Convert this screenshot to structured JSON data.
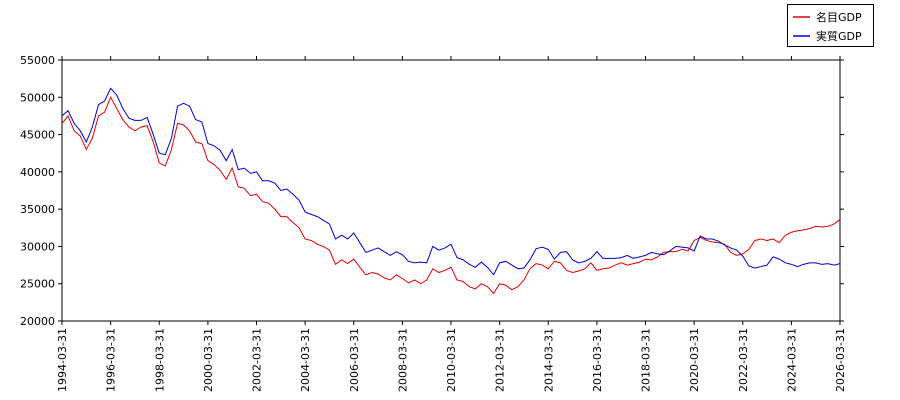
{
  "chart_data": {
    "type": "line",
    "x": [
      "1994-03-31",
      "1994-06-30",
      "1994-09-30",
      "1994-12-31",
      "1995-03-31",
      "1995-06-30",
      "1995-09-30",
      "1995-12-31",
      "1996-03-31",
      "1996-06-30",
      "1996-09-30",
      "1996-12-31",
      "1997-03-31",
      "1997-06-30",
      "1997-09-30",
      "1997-12-31",
      "1998-03-31",
      "1998-06-30",
      "1998-09-30",
      "1998-12-31",
      "1999-03-31",
      "1999-06-30",
      "1999-09-30",
      "1999-12-31",
      "2000-03-31",
      "2000-06-30",
      "2000-09-30",
      "2000-12-31",
      "2001-03-31",
      "2001-06-30",
      "2001-09-30",
      "2001-12-31",
      "2002-03-31",
      "2002-06-30",
      "2002-09-30",
      "2002-12-31",
      "2003-03-31",
      "2003-06-30",
      "2003-09-30",
      "2003-12-31",
      "2004-03-31",
      "2004-06-30",
      "2004-09-30",
      "2004-12-31",
      "2005-03-31",
      "2005-06-30",
      "2005-09-30",
      "2005-12-31",
      "2006-03-31",
      "2006-06-30",
      "2006-09-30",
      "2006-12-31",
      "2007-03-31",
      "2007-06-30",
      "2007-09-30",
      "2007-12-31",
      "2008-03-31",
      "2008-06-30",
      "2008-09-30",
      "2008-12-31",
      "2009-03-31",
      "2009-06-30",
      "2009-09-30",
      "2009-12-31",
      "2010-03-31",
      "2010-06-30",
      "2010-09-30",
      "2010-12-31",
      "2011-03-31",
      "2011-06-30",
      "2011-09-30",
      "2011-12-31",
      "2012-03-31",
      "2012-06-30",
      "2012-09-30",
      "2012-12-31",
      "2013-03-31",
      "2013-06-30",
      "2013-09-30",
      "2013-12-31",
      "2014-03-31",
      "2014-06-30",
      "2014-09-30",
      "2014-12-31",
      "2015-03-31",
      "2015-06-30",
      "2015-09-30",
      "2015-12-31",
      "2016-03-31",
      "2016-06-30",
      "2016-09-30",
      "2016-12-31",
      "2017-03-31",
      "2017-06-30",
      "2017-09-30",
      "2017-12-31",
      "2018-03-31",
      "2018-06-30",
      "2018-09-30",
      "2018-12-31",
      "2019-03-31",
      "2019-06-30",
      "2019-09-30",
      "2019-12-31",
      "2020-03-31",
      "2020-06-30",
      "2020-09-30",
      "2020-12-31",
      "2021-03-31",
      "2021-06-30",
      "2021-09-30",
      "2021-12-31",
      "2022-03-31",
      "2022-06-30",
      "2022-09-30",
      "2022-12-31",
      "2023-03-31",
      "2023-06-30",
      "2023-09-30",
      "2023-12-31",
      "2024-03-31",
      "2024-06-30",
      "2024-09-30",
      "2024-12-31",
      "2025-03-31",
      "2025-06-30",
      "2025-09-30",
      "2025-12-31",
      "2026-03-31"
    ],
    "series": [
      {
        "name": "名目GDP",
        "color": "#e00000",
        "values": [
          46500,
          47500,
          45500,
          44800,
          43000,
          44500,
          47500,
          48000,
          50000,
          48500,
          47000,
          46000,
          45500,
          46000,
          46200,
          44000,
          41200,
          40800,
          43000,
          46500,
          46300,
          45500,
          44000,
          43800,
          41500,
          41000,
          40200,
          39000,
          40500,
          38000,
          37800,
          36800,
          37000,
          36000,
          35800,
          35000,
          34000,
          34000,
          33200,
          32500,
          31000,
          30800,
          30300,
          30000,
          29500,
          27600,
          28200,
          27700,
          28300,
          27200,
          26200,
          26500,
          26300,
          25800,
          25500,
          26200,
          25700,
          25100,
          25500,
          25000,
          25500,
          27000,
          26500,
          26800,
          27200,
          25500,
          25300,
          24600,
          24300,
          25000,
          24600,
          23700,
          25000,
          24800,
          24200,
          24600,
          25500,
          27000,
          27700,
          27500,
          27000,
          28000,
          27800,
          26800,
          26500,
          26700,
          27000,
          27800,
          26800,
          27000,
          27100,
          27500,
          27800,
          27500,
          27700,
          27900,
          28300,
          28200,
          28600,
          29200,
          29300,
          29300,
          29600,
          29400,
          30800,
          31200,
          30800,
          30600,
          30500,
          30300,
          29200,
          28800,
          29000,
          29600,
          30800,
          31000,
          30800,
          31000,
          30500,
          31500,
          31900,
          32100,
          32200,
          32400,
          32700,
          32600,
          32700,
          33000,
          33600
        ]
      },
      {
        "name": "実質GDP",
        "color": "#0000d0",
        "values": [
          47500,
          48200,
          46500,
          45500,
          44000,
          46000,
          49000,
          49500,
          51200,
          50300,
          48500,
          47200,
          46900,
          46900,
          47300,
          45000,
          42500,
          42300,
          44500,
          48800,
          49200,
          48800,
          47000,
          46700,
          43800,
          43500,
          42900,
          41500,
          43000,
          40300,
          40500,
          39800,
          40000,
          38800,
          38800,
          38500,
          37500,
          37700,
          37000,
          36200,
          34600,
          34300,
          34000,
          33500,
          33000,
          31000,
          31500,
          31000,
          31800,
          30500,
          29200,
          29500,
          29800,
          29300,
          28800,
          29300,
          28900,
          28000,
          27800,
          27900,
          27800,
          30000,
          29500,
          29800,
          30300,
          28500,
          28200,
          27600,
          27200,
          27900,
          27200,
          26200,
          27800,
          28000,
          27500,
          27000,
          27100,
          28200,
          29700,
          29900,
          29600,
          28300,
          29200,
          29300,
          28200,
          27800,
          28000,
          28400,
          29300,
          28400,
          28400,
          28400,
          28500,
          28800,
          28400,
          28600,
          28800,
          29200,
          29000,
          28900,
          29400,
          30000,
          29900,
          29800,
          29400,
          31400,
          31000,
          31000,
          30700,
          30200,
          29800,
          29500,
          28700,
          27400,
          27100,
          27300,
          27500,
          28600,
          28300,
          27800,
          27600,
          27300,
          27600,
          27800,
          27800,
          27600,
          27700,
          27500,
          27700
        ]
      }
    ],
    "xlim": [
      "1994-03-31",
      "2026-03-31"
    ],
    "xticks": [
      "1994-03-31",
      "1996-03-31",
      "1998-03-31",
      "2000-03-31",
      "2002-03-31",
      "2004-03-31",
      "2006-03-31",
      "2008-03-31",
      "2010-03-31",
      "2012-03-31",
      "2014-03-31",
      "2016-03-31",
      "2018-03-31",
      "2020-03-31",
      "2022-03-31",
      "2024-03-31",
      "2026-03-31"
    ],
    "ylim": [
      20000,
      55000
    ],
    "yticks": [
      20000,
      25000,
      30000,
      35000,
      40000,
      45000,
      50000,
      55000
    ],
    "legend": "top-right"
  }
}
